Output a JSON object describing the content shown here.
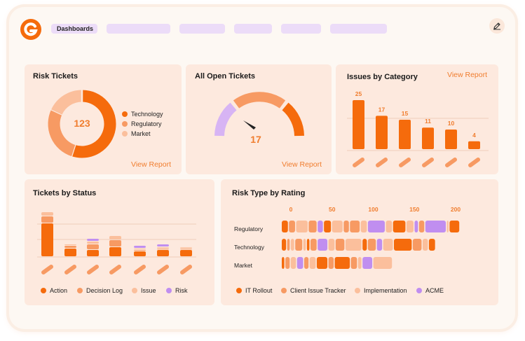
{
  "header": {
    "active_tab": "Dashboards"
  },
  "colors": {
    "accent": "#f07d2e",
    "orange_dark": "#f56b0c",
    "orange_mid": "#f79a63",
    "orange_light": "#fbbf9c",
    "lilac": "#d7b4f4",
    "purple": "#c08ef0"
  },
  "risk_tickets": {
    "title": "Risk Tickets",
    "total": "123",
    "link": "View Report",
    "legend": [
      "Technology",
      "Regulatory",
      "Market"
    ],
    "chart_data": {
      "type": "pie",
      "labels": [
        "Technology",
        "Regulatory",
        "Market"
      ],
      "values": [
        55,
        27,
        18
      ]
    }
  },
  "open_tickets": {
    "title": "All Open Tickets",
    "value": "17",
    "link": "View Report"
  },
  "issues_by_category": {
    "title": "Issues by Category",
    "link": "View Report",
    "chart_data": {
      "type": "bar",
      "values": [
        25,
        17,
        15,
        11,
        10,
        4
      ]
    }
  },
  "tickets_by_status": {
    "title": "Tickets by Status",
    "legend": [
      "Action",
      "Decision Log",
      "Issue",
      "Risk"
    ],
    "chart_data": {
      "type": "bar",
      "stacked": true,
      "series": [
        {
          "name": "Action",
          "values": [
            24,
            6,
            5,
            7,
            4,
            5,
            5
          ]
        },
        {
          "name": "Decision Log",
          "values": [
            5,
            2,
            4,
            5,
            1,
            1,
            1
          ]
        },
        {
          "name": "Issue",
          "values": [
            3,
            1,
            2,
            3,
            1,
            1,
            1
          ]
        },
        {
          "name": "Risk",
          "values": [
            0,
            0,
            2,
            0,
            2,
            2,
            0
          ]
        }
      ]
    }
  },
  "risk_type_by_rating": {
    "title": "Risk Type by Rating",
    "legend": [
      "IT Rollout",
      "Client Issue Tracker",
      "Implementation",
      "ACME"
    ],
    "chart_data": {
      "type": "bar",
      "orientation": "horizontal",
      "categories": [
        "Regulatory",
        "Technology",
        "Market"
      ],
      "x_ticks": [
        "0",
        "50",
        "100",
        "150",
        "200"
      ],
      "xlim": [
        0,
        200
      ],
      "rows": [
        [
          [
            "IT Rollout",
            8
          ],
          [
            "Client Issue Tracker",
            8
          ],
          [
            "Implementation",
            14
          ],
          [
            "Client Issue Tracker",
            10
          ],
          [
            "ACME",
            7
          ],
          [
            "IT Rollout",
            9
          ],
          [
            "Implementation",
            13
          ],
          [
            "Client Issue Tracker",
            7
          ],
          [
            "Client Issue Tracker",
            12
          ],
          [
            "Implementation",
            8
          ],
          [
            "ACME",
            20
          ],
          [
            "Implementation",
            8
          ],
          [
            "IT Rollout",
            15
          ],
          [
            "Implementation",
            9
          ],
          [
            "ACME",
            5
          ],
          [
            "Client Issue Tracker",
            7
          ],
          [
            "ACME",
            24
          ],
          [
            "Implementation",
            3
          ],
          [
            "IT Rollout",
            12
          ]
        ],
        [
          [
            "IT Rollout",
            6
          ],
          [
            "Client Issue Tracker",
            4
          ],
          [
            "Implementation",
            5
          ],
          [
            "Client Issue Tracker",
            9
          ],
          [
            "Implementation",
            4
          ],
          [
            "IT Rollout",
            4
          ],
          [
            "Client Issue Tracker",
            8
          ],
          [
            "ACME",
            12
          ],
          [
            "Implementation",
            8
          ],
          [
            "Client Issue Tracker",
            11
          ],
          [
            "Implementation",
            19
          ],
          [
            "IT Rollout",
            6
          ],
          [
            "Client Issue Tracker",
            10
          ],
          [
            "ACME",
            7
          ],
          [
            "Implementation",
            12
          ],
          [
            "IT Rollout",
            21
          ],
          [
            "Client Issue Tracker",
            11
          ],
          [
            "Implementation",
            7
          ],
          [
            "IT Rollout",
            8
          ]
        ],
        [
          [
            "IT Rollout",
            4
          ],
          [
            "Client Issue Tracker",
            6
          ],
          [
            "Implementation",
            7
          ],
          [
            "ACME",
            8
          ],
          [
            "Client Issue Tracker",
            6
          ],
          [
            "Implementation",
            8
          ],
          [
            "IT Rollout",
            13
          ],
          [
            "Client Issue Tracker",
            7
          ],
          [
            "IT Rollout",
            18
          ],
          [
            "Client Issue Tracker",
            8
          ],
          [
            "Implementation",
            5
          ],
          [
            "ACME",
            12
          ],
          [
            "Implementation",
            22
          ]
        ]
      ]
    }
  }
}
